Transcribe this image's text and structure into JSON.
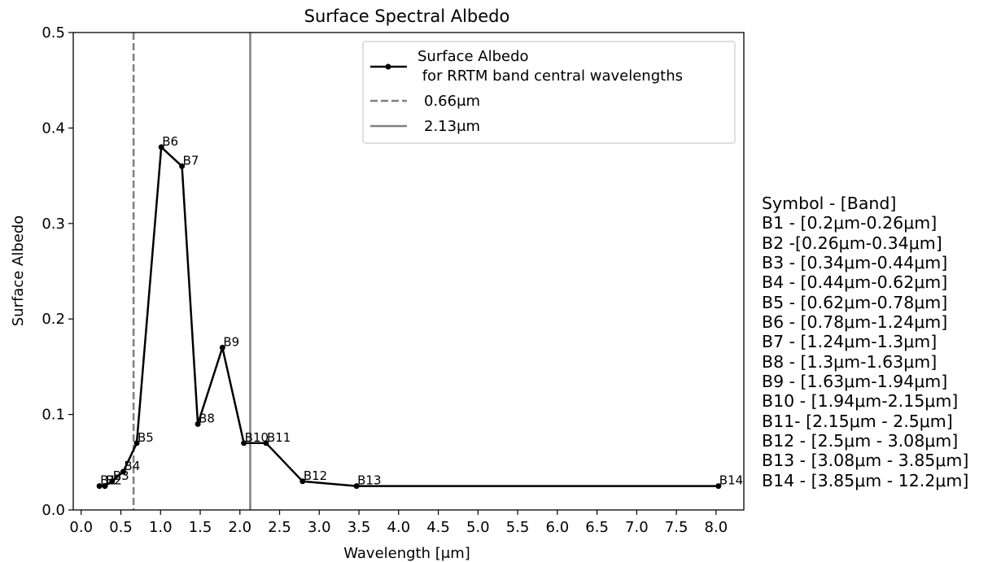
{
  "chart_data": {
    "type": "line",
    "title": "Surface Spectral Albedo",
    "xlabel": "Wavelength [μm]",
    "ylabel": "Surface Albedo",
    "xlim": [
      -0.1,
      8.35
    ],
    "ylim": [
      0,
      0.5
    ],
    "xticks": [
      "0.0",
      "0.5",
      "1.0",
      "1.5",
      "2.0",
      "2.5",
      "3.0",
      "3.5",
      "4.0",
      "4.5",
      "5.0",
      "5.5",
      "6.0",
      "6.5",
      "7.0",
      "7.5",
      "8.0"
    ],
    "yticks": [
      "0.0",
      "0.1",
      "0.2",
      "0.3",
      "0.4",
      "0.5"
    ],
    "grid": false,
    "legend_position": "top-right",
    "series": [
      {
        "name": "Surface Albedo\n for RRTM band central wavelengths",
        "color": "#000000",
        "marker": "circle",
        "points": [
          {
            "label": "B1",
            "x": 0.23,
            "y": 0.025
          },
          {
            "label": "B2",
            "x": 0.3,
            "y": 0.025
          },
          {
            "label": "B3",
            "x": 0.39,
            "y": 0.03
          },
          {
            "label": "B4",
            "x": 0.53,
            "y": 0.04
          },
          {
            "label": "B5",
            "x": 0.7,
            "y": 0.07
          },
          {
            "label": "B6",
            "x": 1.01,
            "y": 0.38
          },
          {
            "label": "B7",
            "x": 1.27,
            "y": 0.36
          },
          {
            "label": "B8",
            "x": 1.47,
            "y": 0.09
          },
          {
            "label": "B9",
            "x": 1.78,
            "y": 0.17
          },
          {
            "label": "B10",
            "x": 2.05,
            "y": 0.07
          },
          {
            "label": "B11",
            "x": 2.33,
            "y": 0.07
          },
          {
            "label": "B12",
            "x": 2.79,
            "y": 0.03
          },
          {
            "label": "B13",
            "x": 3.47,
            "y": 0.025
          },
          {
            "label": "B14",
            "x": 8.03,
            "y": 0.025
          }
        ]
      }
    ],
    "reference_lines": [
      {
        "name": "0.66μm",
        "x": 0.66,
        "style": "dashed",
        "color": "#808080"
      },
      {
        "name": "2.13μm",
        "x": 2.13,
        "style": "solid",
        "color": "#808080"
      }
    ],
    "legend": {
      "line1": "Surface Albedo",
      "line2": " for RRTM band central wavelengths",
      "line3": "0.66μm",
      "line4": "2.13μm"
    },
    "band_legend": [
      "Symbol - [Band]",
      "B1 - [0.2μm-0.26μm]",
      "B2 -[0.26μm-0.34μm]",
      "B3 - [0.34μm-0.44μm]",
      "B4 - [0.44μm-0.62μm]",
      "B5 - [0.62μm-0.78μm]",
      "B6 - [0.78μm-1.24μm]",
      "B7 - [1.24μm-1.3μm]",
      "B8 - [1.3μm-1.63μm]",
      "B9 - [1.63μm-1.94μm]",
      "B10 - [1.94μm-2.15μm]",
      "B11- [2.15μm - 2.5μm]",
      "B12 - [2.5μm - 3.08μm]",
      "B13 - [3.08μm - 3.85μm]",
      "B14 - [3.85μm - 12.2μm]"
    ]
  }
}
